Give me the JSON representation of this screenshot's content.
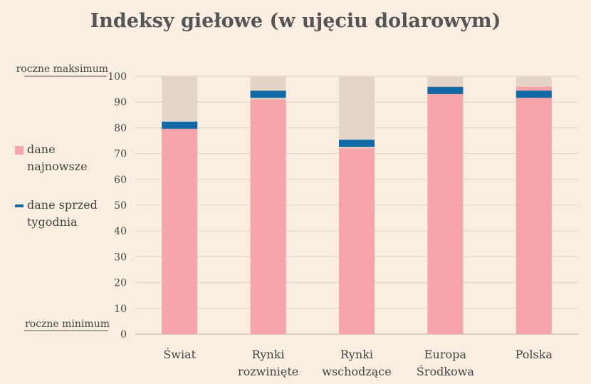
{
  "chart_data": {
    "type": "bar",
    "title": "Indeksy giełowe (w ujęciu dolarowym)",
    "categories": [
      [
        "Świat"
      ],
      [
        "Rynki",
        "rozwinięte"
      ],
      [
        "Rynki",
        "wschodzące"
      ],
      [
        "Europa",
        "Środkowa"
      ],
      [
        "Polska"
      ]
    ],
    "series": [
      {
        "name": "dane najnowsze",
        "values": [
          80,
          91,
          72,
          96,
          96
        ],
        "color": "#f7a5ab"
      },
      {
        "name": "dane sprzed tygodnia",
        "values": [
          81,
          93,
          74,
          94.5,
          93
        ],
        "color": "#116aa4"
      }
    ],
    "range_color": "#e3d6c9",
    "range_values": [
      100,
      100,
      100,
      100,
      100
    ],
    "ylim": [
      0,
      100
    ],
    "yticks": [
      0,
      10,
      20,
      30,
      40,
      50,
      60,
      70,
      80,
      90,
      100
    ],
    "ymax_label": "roczne maksimum",
    "ymin_label": "roczne minimum",
    "grid": true,
    "legend_position": "left"
  },
  "legend": {
    "latest_label": "dane najnowsze",
    "prev_label": "dane sprzed tygodnia"
  }
}
